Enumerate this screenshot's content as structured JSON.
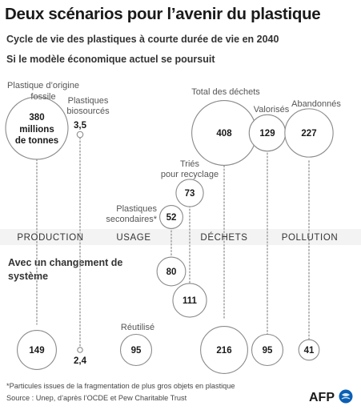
{
  "header": {
    "title": "Deux scénarios pour l’avenir du plastique",
    "subtitle": "Cycle de vie des plastiques à courte durée de vie en 2040"
  },
  "scenarios": {
    "current": "Si le modèle économique actuel se poursuit",
    "change": "Avec un changement de système"
  },
  "colors": {
    "circle_stroke": "#8a8a8a",
    "dotted_line": "#9a9a9a",
    "band_fill": "#eeeeee",
    "afp_blue": "#0a5fb4"
  },
  "chart_data": {
    "type": "bubble",
    "unit": "millions de tonnes",
    "stages": [
      "PRODUCTION",
      "USAGE",
      "DÉCHETS",
      "POLLUTION"
    ],
    "current_system": [
      {
        "label": "Plastique d’origine fossile",
        "value": 380,
        "value_text": "380",
        "unit_text": "millions de tonnes",
        "stage": "PRODUCTION"
      },
      {
        "label": "Plastiques biosourcés",
        "value": 3.5,
        "value_text": "3,5",
        "stage": "PRODUCTION"
      },
      {
        "label": "Plastiques secondaires*",
        "value": 52,
        "value_text": "52",
        "stage": "USAGE"
      },
      {
        "label": "Triés pour recyclage",
        "value": 73,
        "value_text": "73",
        "stage": "DÉCHETS"
      },
      {
        "label": "Total des déchets",
        "value": 408,
        "value_text": "408",
        "stage": "DÉCHETS"
      },
      {
        "label": "Valorisés",
        "value": 129,
        "value_text": "129",
        "stage": "DÉCHETS"
      },
      {
        "label": "Abandonnés",
        "value": 227,
        "value_text": "227",
        "stage": "POLLUTION"
      }
    ],
    "system_change": [
      {
        "label": "",
        "value": 80,
        "value_text": "80",
        "stage": "USAGE"
      },
      {
        "label": "",
        "value": 111,
        "value_text": "111",
        "stage": "DÉCHETS"
      },
      {
        "label": "",
        "value": 149,
        "value_text": "149",
        "stage": "PRODUCTION"
      },
      {
        "label": "",
        "value": 2.4,
        "value_text": "2,4",
        "stage": "PRODUCTION"
      },
      {
        "label": "Réutilisé",
        "value": 95,
        "value_text": "95",
        "stage": "USAGE"
      },
      {
        "label": "",
        "value": 216,
        "value_text": "216",
        "stage": "DÉCHETS"
      },
      {
        "label": "",
        "value": 95,
        "value_text": "95",
        "stage": "DÉCHETS"
      },
      {
        "label": "",
        "value": 41,
        "value_text": "41",
        "stage": "POLLUTION"
      }
    ]
  },
  "footer": {
    "footnote": "*Particules issues de la fragmentation de plus gros objets en plastique",
    "source": "Source : Unep, d’après l’OCDE et Pew Charitable Trust",
    "logo_text": "AFP"
  }
}
